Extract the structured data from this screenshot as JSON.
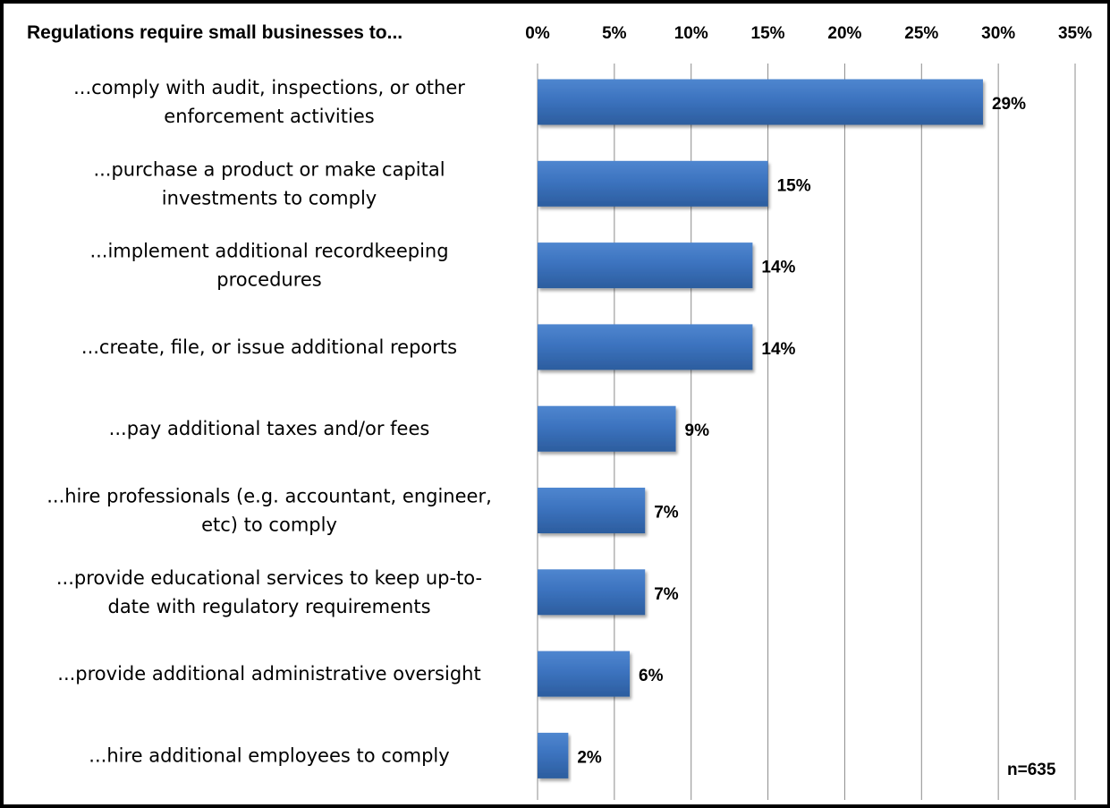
{
  "chart_data": {
    "type": "bar",
    "orientation": "horizontal",
    "title": "Regulations require small businesses to...",
    "categories": [
      [
        "...comply with audit, inspections, or other",
        "enforcement activities"
      ],
      [
        "...purchase a product or make capital",
        "investments to comply"
      ],
      [
        "...implement additional recordkeeping",
        "procedures"
      ],
      [
        "...create, file, or issue additional reports"
      ],
      [
        "...pay additional taxes and/or fees"
      ],
      [
        "...hire professionals (e.g. accountant, engineer,",
        "etc) to comply"
      ],
      [
        "...provide educational services to keep up-to-",
        "date with regulatory requirements"
      ],
      [
        "...provide additional administrative oversight"
      ],
      [
        "...hire additional employees to comply"
      ]
    ],
    "values": [
      29,
      15,
      14,
      14,
      9,
      7,
      7,
      6,
      2
    ],
    "value_labels": [
      "29%",
      "15%",
      "14%",
      "14%",
      "9%",
      "7%",
      "7%",
      "6%",
      "2%"
    ],
    "xlim": [
      0,
      35
    ],
    "x_ticks": [
      0,
      5,
      10,
      15,
      20,
      25,
      30,
      35
    ],
    "x_tick_labels": [
      "0%",
      "5%",
      "10%",
      "15%",
      "20%",
      "25%",
      "30%",
      "35%"
    ],
    "x_axis_position": "top",
    "grid": true,
    "bar_color": "#3c73bf",
    "note": "n=635"
  }
}
